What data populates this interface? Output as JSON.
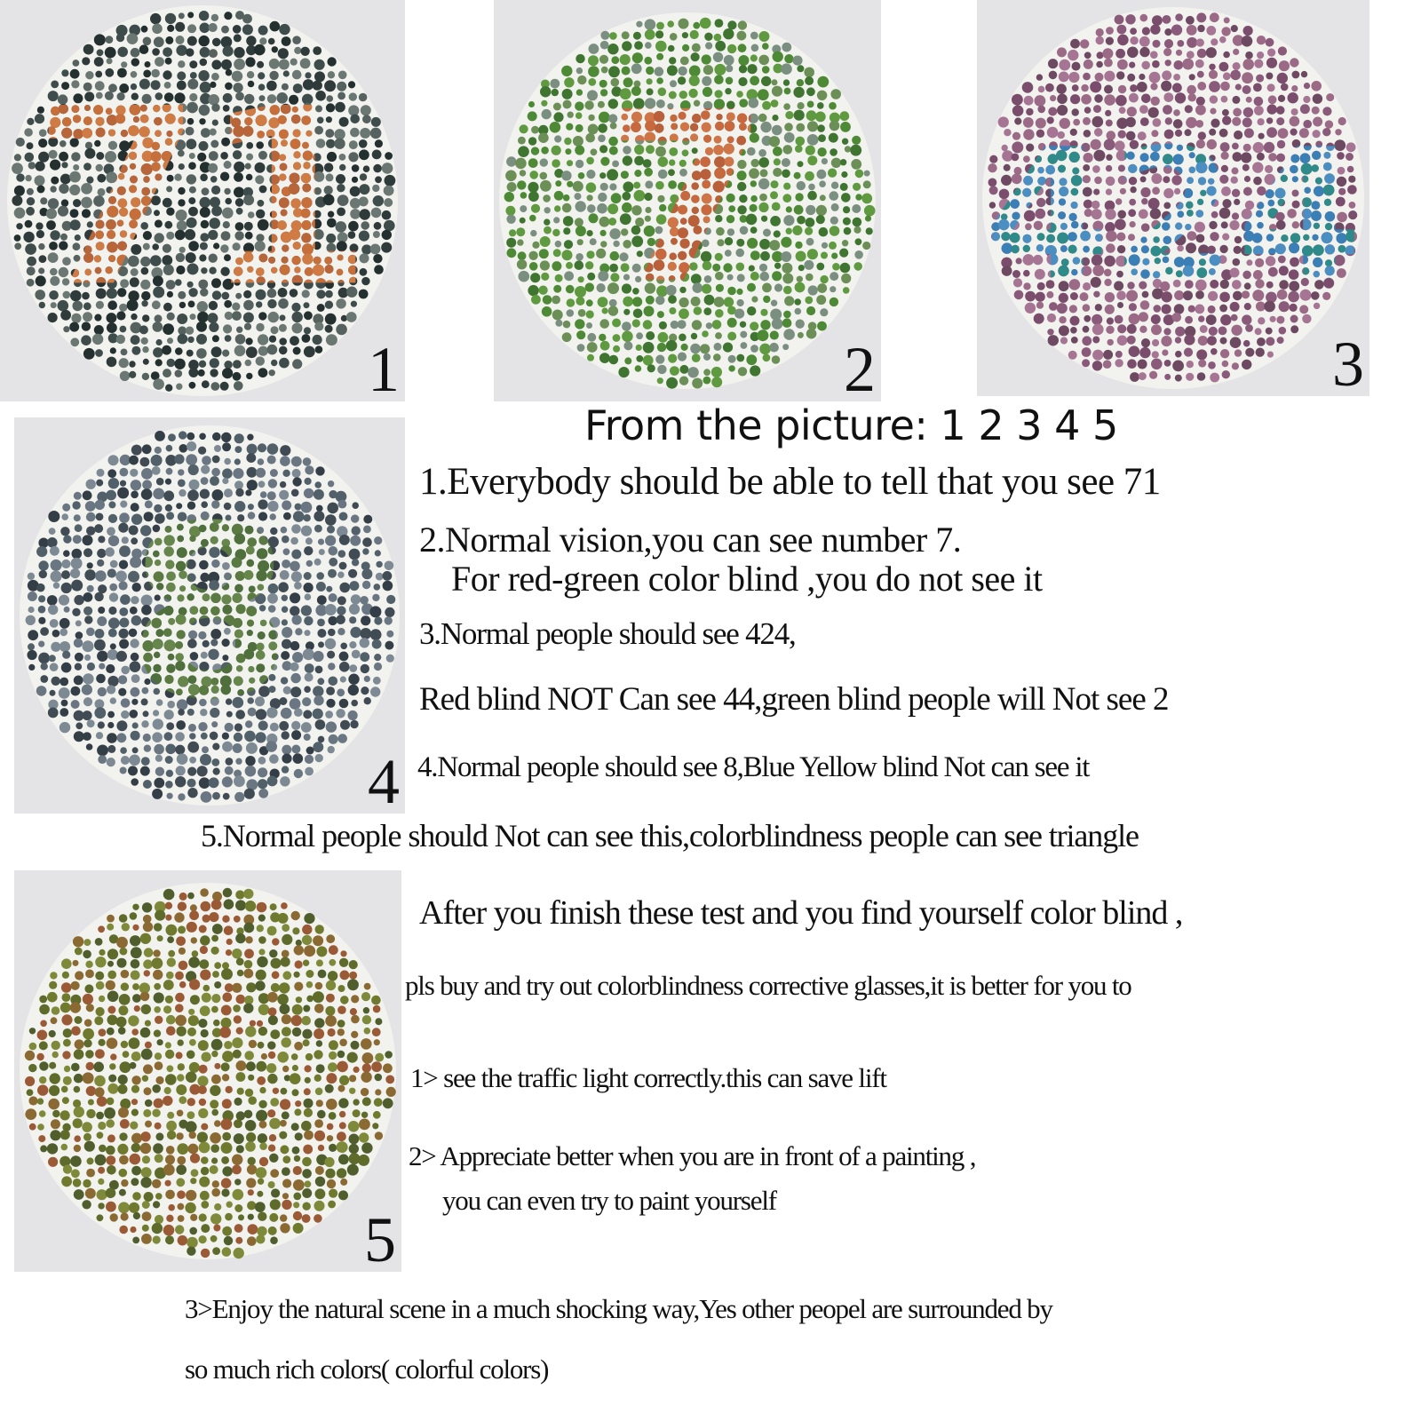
{
  "plates": [
    {
      "number": "1",
      "figure": "71",
      "bg_colors": [
        "#2f3b3b",
        "#3e4d4c",
        "#56625f",
        "#24302f",
        "#6b7773"
      ],
      "fig_colors": [
        "#c76f3a",
        "#d07a44",
        "#b8653a"
      ]
    },
    {
      "number": "2",
      "figure": "7",
      "bg_colors": [
        "#4e8a36",
        "#5f9a40",
        "#3f7530",
        "#6c8f57",
        "#7a8f80"
      ],
      "fig_colors": [
        "#c8683e",
        "#d07548",
        "#b95f3a"
      ]
    },
    {
      "number": "3",
      "figure": "424",
      "bg_colors": [
        "#8a5a7a",
        "#9b6a86",
        "#7a4d6c",
        "#a57593",
        "#6e4a62"
      ],
      "fig_colors": [
        "#3a7fb6",
        "#4b8fc2",
        "#2f8a8a"
      ]
    },
    {
      "number": "4",
      "figure": "8",
      "bg_colors": [
        "#404b54",
        "#52606a",
        "#6a7782",
        "#343e46",
        "#7d8a94"
      ],
      "fig_colors": [
        "#5a7a42",
        "#4f6f3c",
        "#66864c"
      ]
    },
    {
      "number": "5",
      "figure": "",
      "bg_colors": [
        "#6f7a2e",
        "#8a6a32",
        "#5e6b2a",
        "#9a5a36",
        "#4f5e2c",
        "#7e8a3a"
      ],
      "fig_colors": []
    }
  ],
  "heading": "From the picture: 1 2 3 4 5",
  "lines": [
    "1.Everybody should be able to tell that you see 71",
    "2.Normal vision,you can see number 7.",
    "For red-green color blind ,you do not see it",
    "3.Normal people should see 424,",
    "Red blind NOT Can see 44,green blind people will Not see 2",
    "4.Normal people should see 8,Blue Yellow blind Not can see it",
    "5.Normal people should Not can see this,colorblindness people can see triangle",
    "After you finish these test and you find yourself color blind ,",
    "pls buy and try out colorblindness corrective glasses,it is better for you to",
    "1> see the traffic light correctly.this can save lift",
    "2> Appreciate better when you are in front of a painting ,",
    "you can even try to paint yourself",
    "3>Enjoy the natural scene in a much shocking way,Yes other peopel are surrounded by",
    "so much rich colors( colorful colors)"
  ]
}
